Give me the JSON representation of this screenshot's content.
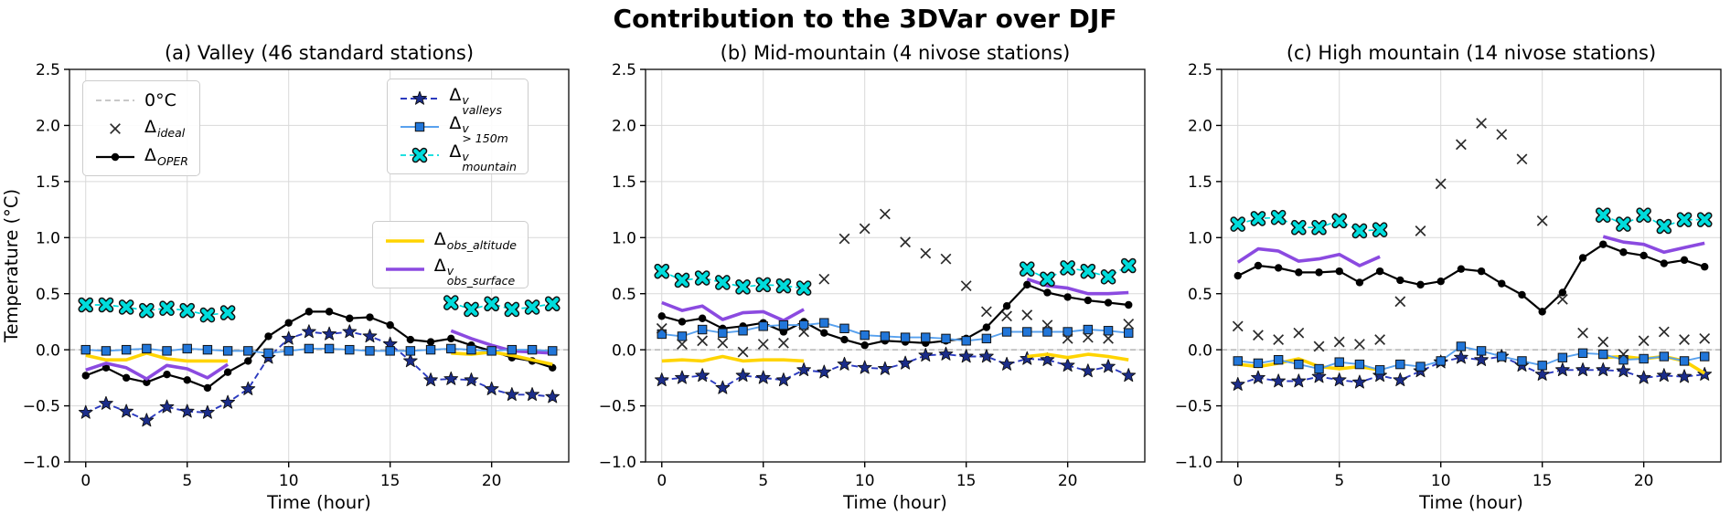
{
  "figure": {
    "title": "Contribution to the 3DVar over DJF",
    "x_axis_label": "Time (hour)",
    "y_axis_label": "Temperature (°C)",
    "x_ticks": [
      0,
      5,
      10,
      15,
      20
    ],
    "x_tick_labels": [
      "0",
      "5",
      "10",
      "15",
      "20"
    ],
    "y_ticks": [
      2.5,
      2.0,
      1.5,
      1.0,
      0.5,
      0.0,
      -0.5,
      -1.0
    ],
    "y_tick_labels": [
      "2.5",
      "2.0",
      "1.5",
      "1.0",
      "0.5",
      "0.0",
      "−0.5",
      "−1.0"
    ],
    "xlim": [
      -0.8,
      23.8
    ],
    "ylim": [
      -1.0,
      2.5
    ],
    "grid": true,
    "legend_position": "upper-left and upper-right of panel (a) only"
  },
  "colors": {
    "background": "#ffffff",
    "grid": "#d9d9d9",
    "spine": "#1a1a1a",
    "zero_line": "#a6a6a6",
    "ideal": "#2b2b2b",
    "oper": "#000000",
    "valleys_line": "#2b3abe",
    "valleys_marker": "#1b2d8a",
    "gt150_line": "#58a1ee",
    "gt150_marker": "#2176d9",
    "mountain": "#00dcdc",
    "obs_altitude": "#ffd400",
    "obs_surface": "#8b4ae0"
  },
  "series_styles": {
    "zero": {
      "color": "#a6a6a6",
      "width": 1.3,
      "dash": [
        6,
        4
      ],
      "marker": null
    },
    "ideal": {
      "color": "#2b2b2b",
      "width": 0,
      "dash": null,
      "marker": "x"
    },
    "oper": {
      "color": "#000000",
      "width": 2.2,
      "dash": null,
      "marker": "circle",
      "marker_color": "#000000"
    },
    "valleys": {
      "color": "#2b3abe",
      "width": 1.9,
      "dash": [
        7,
        4
      ],
      "marker": "star",
      "marker_color": "#1b2d8a"
    },
    "gt150": {
      "color": "#58a1ee",
      "width": 1.9,
      "dash": null,
      "marker": "square",
      "marker_color": "#2176d9"
    },
    "mountain": {
      "color": "#00dcdc",
      "width": 1.7,
      "dash": [
        6,
        4
      ],
      "marker": "thickx",
      "marker_color": "#00dcdc"
    },
    "obs_altitude": {
      "color": "#ffd400",
      "width": 3.6,
      "dash": null,
      "marker": null
    },
    "obs_surface": {
      "color": "#8b4ae0",
      "width": 3.6,
      "dash": null,
      "marker": null
    }
  },
  "legend": {
    "reference_box": [
      {
        "series": "zero",
        "base": "0°C"
      },
      {
        "series": "ideal",
        "base": "Δ",
        "sub": "ideal"
      },
      {
        "series": "oper",
        "base": "Δ",
        "sub": "OPER"
      }
    ],
    "increments_box": [
      {
        "series": "valleys",
        "base": "Δ",
        "sup": "v",
        "sub": "valleys"
      },
      {
        "series": "gt150",
        "base": "Δ",
        "sup": "v",
        "sub": "> 150m"
      },
      {
        "series": "mountain",
        "base": "Δ",
        "sup": "v",
        "sub": "mountain"
      }
    ],
    "obs_box": [
      {
        "series": "obs_altitude",
        "base": "Δ",
        "sub": "obs_altitude"
      },
      {
        "series": "obs_surface",
        "base": "Δ",
        "sup": "v",
        "sub": "obs_surface"
      }
    ]
  },
  "chart_data": [
    {
      "type": "line",
      "panel": "a",
      "title": "(a) Valley (46 standard stations)",
      "xlabel": "Time (hour)",
      "ylabel": "Temperature (°C)",
      "ylim": [
        -1.0,
        2.5
      ],
      "x": [
        0,
        1,
        2,
        3,
        4,
        5,
        6,
        7,
        8,
        9,
        10,
        11,
        12,
        13,
        14,
        15,
        16,
        17,
        18,
        19,
        20,
        21,
        22,
        23
      ],
      "series": [
        {
          "name": "oper",
          "values": [
            -0.23,
            -0.16,
            -0.25,
            -0.29,
            -0.22,
            -0.27,
            -0.34,
            -0.2,
            -0.1,
            0.12,
            0.24,
            0.34,
            0.34,
            0.28,
            0.29,
            0.22,
            0.09,
            0.07,
            0.1,
            0.04,
            -0.01,
            -0.07,
            -0.1,
            -0.16
          ]
        },
        {
          "name": "valleys",
          "values": [
            -0.56,
            -0.48,
            -0.55,
            -0.63,
            -0.51,
            -0.55,
            -0.56,
            -0.47,
            -0.35,
            -0.07,
            0.1,
            0.16,
            0.14,
            0.16,
            0.12,
            0.05,
            -0.1,
            -0.27,
            -0.26,
            -0.27,
            -0.35,
            -0.4,
            -0.4,
            -0.42
          ]
        },
        {
          "name": "obs_altitude",
          "values": [
            -0.05,
            -0.09,
            -0.09,
            -0.03,
            -0.08,
            -0.1,
            -0.1,
            -0.1,
            null,
            null,
            null,
            null,
            null,
            null,
            null,
            null,
            null,
            null,
            -0.03,
            -0.04,
            -0.02,
            -0.05,
            -0.09,
            -0.13
          ]
        },
        {
          "name": "obs_surface",
          "values": [
            -0.18,
            -0.12,
            -0.16,
            -0.26,
            -0.14,
            -0.17,
            -0.25,
            -0.13,
            null,
            null,
            null,
            null,
            null,
            null,
            null,
            null,
            null,
            null,
            0.17,
            0.1,
            0.04,
            -0.01,
            -0.02,
            -0.03
          ]
        },
        {
          "name": "gt150",
          "values": [
            0.0,
            -0.01,
            0.0,
            0.01,
            -0.01,
            0.01,
            0.0,
            -0.01,
            -0.01,
            -0.03,
            -0.01,
            0.01,
            0.01,
            0.0,
            -0.01,
            -0.01,
            -0.01,
            0.0,
            0.01,
            0.0,
            -0.01,
            0.0,
            0.0,
            -0.01
          ]
        },
        {
          "name": "mountain",
          "values": [
            0.4,
            0.4,
            0.38,
            0.35,
            0.37,
            0.35,
            0.31,
            0.33,
            null,
            null,
            null,
            null,
            null,
            null,
            null,
            null,
            null,
            null,
            0.42,
            0.36,
            0.41,
            0.36,
            0.38,
            0.41
          ]
        }
      ]
    },
    {
      "type": "line",
      "panel": "b",
      "title": "(b) Mid-mountain (4 nivose stations)",
      "xlabel": "Time (hour)",
      "ylabel": "Temperature (°C)",
      "ylim": [
        -1.0,
        2.5
      ],
      "x": [
        0,
        1,
        2,
        3,
        4,
        5,
        6,
        7,
        8,
        9,
        10,
        11,
        12,
        13,
        14,
        15,
        16,
        17,
        18,
        19,
        20,
        21,
        22,
        23
      ],
      "series": [
        {
          "name": "oper",
          "values": [
            0.3,
            0.25,
            0.28,
            0.19,
            0.21,
            0.24,
            0.16,
            0.25,
            0.15,
            0.09,
            0.04,
            0.08,
            0.07,
            0.06,
            0.08,
            0.1,
            0.2,
            0.39,
            0.58,
            0.51,
            0.47,
            0.44,
            0.42,
            0.4
          ]
        },
        {
          "name": "valleys",
          "values": [
            -0.27,
            -0.25,
            -0.23,
            -0.34,
            -0.23,
            -0.25,
            -0.27,
            -0.18,
            -0.2,
            -0.13,
            -0.16,
            -0.17,
            -0.12,
            -0.05,
            -0.04,
            -0.06,
            -0.06,
            -0.13,
            -0.08,
            -0.09,
            -0.14,
            -0.19,
            -0.15,
            -0.23
          ]
        },
        {
          "name": "obs_altitude",
          "values": [
            -0.1,
            -0.09,
            -0.1,
            -0.06,
            -0.1,
            -0.09,
            -0.09,
            -0.1,
            null,
            null,
            null,
            null,
            null,
            null,
            null,
            null,
            null,
            null,
            -0.06,
            -0.04,
            -0.07,
            -0.04,
            -0.06,
            -0.09
          ]
        },
        {
          "name": "obs_surface",
          "values": [
            0.42,
            0.35,
            0.39,
            0.27,
            0.33,
            0.34,
            0.26,
            0.36,
            null,
            null,
            null,
            null,
            null,
            null,
            null,
            null,
            null,
            null,
            0.63,
            0.57,
            0.55,
            0.5,
            0.5,
            0.51
          ]
        },
        {
          "name": "gt150",
          "values": [
            0.14,
            0.12,
            0.18,
            0.15,
            0.17,
            0.21,
            0.22,
            0.22,
            0.24,
            0.19,
            0.13,
            0.12,
            0.11,
            0.11,
            0.1,
            0.08,
            0.1,
            0.16,
            0.16,
            0.16,
            0.16,
            0.18,
            0.17,
            0.15
          ]
        },
        {
          "name": "mountain",
          "values": [
            0.7,
            0.62,
            0.64,
            0.6,
            0.56,
            0.58,
            0.57,
            0.55,
            null,
            null,
            null,
            null,
            null,
            null,
            null,
            null,
            null,
            null,
            0.72,
            0.63,
            0.73,
            0.7,
            0.65,
            0.75
          ]
        },
        {
          "name": "ideal",
          "values": [
            0.19,
            0.05,
            0.08,
            0.06,
            -0.02,
            0.05,
            0.06,
            0.16,
            0.63,
            0.99,
            1.08,
            1.21,
            0.96,
            0.86,
            0.81,
            0.57,
            0.34,
            0.3,
            0.31,
            0.22,
            0.1,
            0.11,
            0.1,
            0.23
          ]
        }
      ]
    },
    {
      "type": "line",
      "panel": "c",
      "title": "(c) High mountain (14 nivose stations)",
      "xlabel": "Time (hour)",
      "ylabel": "Temperature (°C)",
      "ylim": [
        -1.0,
        2.5
      ],
      "x": [
        0,
        1,
        2,
        3,
        4,
        5,
        6,
        7,
        8,
        9,
        10,
        11,
        12,
        13,
        14,
        15,
        16,
        17,
        18,
        19,
        20,
        21,
        22,
        23
      ],
      "series": [
        {
          "name": "oper",
          "values": [
            0.66,
            0.75,
            0.73,
            0.69,
            0.69,
            0.7,
            0.6,
            0.7,
            0.62,
            0.58,
            0.61,
            0.72,
            0.7,
            0.59,
            0.49,
            0.34,
            0.51,
            0.82,
            0.94,
            0.87,
            0.84,
            0.77,
            0.8,
            0.74
          ]
        },
        {
          "name": "valleys",
          "values": [
            -0.31,
            -0.25,
            -0.28,
            -0.28,
            -0.24,
            -0.27,
            -0.29,
            -0.23,
            -0.27,
            -0.19,
            -0.11,
            -0.07,
            -0.09,
            -0.06,
            -0.14,
            -0.22,
            -0.18,
            -0.18,
            -0.18,
            -0.19,
            -0.25,
            -0.23,
            -0.24,
            -0.22
          ]
        },
        {
          "name": "obs_altitude",
          "values": [
            -0.13,
            -0.15,
            -0.12,
            -0.08,
            -0.15,
            -0.17,
            -0.15,
            -0.18,
            null,
            null,
            null,
            null,
            null,
            null,
            null,
            null,
            null,
            null,
            -0.07,
            -0.06,
            -0.08,
            -0.06,
            -0.1,
            -0.21
          ]
        },
        {
          "name": "obs_surface",
          "values": [
            0.78,
            0.9,
            0.88,
            0.79,
            0.81,
            0.85,
            0.75,
            0.83,
            null,
            null,
            null,
            null,
            null,
            null,
            null,
            null,
            null,
            null,
            1.01,
            0.96,
            0.94,
            0.87,
            0.91,
            0.95
          ]
        },
        {
          "name": "gt150",
          "values": [
            -0.1,
            -0.12,
            -0.09,
            -0.13,
            -0.17,
            -0.11,
            -0.13,
            -0.18,
            -0.13,
            -0.15,
            -0.1,
            0.03,
            -0.01,
            -0.06,
            -0.1,
            -0.14,
            -0.07,
            -0.03,
            -0.04,
            -0.09,
            -0.08,
            -0.06,
            -0.1,
            -0.06
          ]
        },
        {
          "name": "mountain",
          "values": [
            1.12,
            1.17,
            1.18,
            1.09,
            1.09,
            1.15,
            1.06,
            1.07,
            null,
            null,
            null,
            null,
            null,
            null,
            null,
            null,
            null,
            null,
            1.2,
            1.12,
            1.2,
            1.1,
            1.16,
            1.16
          ]
        },
        {
          "name": "ideal",
          "values": [
            0.21,
            0.13,
            0.09,
            0.15,
            0.03,
            0.07,
            0.05,
            0.09,
            0.43,
            1.06,
            1.48,
            1.83,
            2.02,
            1.92,
            1.7,
            1.15,
            0.45,
            0.15,
            0.07,
            -0.04,
            0.08,
            0.16,
            0.09,
            0.1
          ]
        }
      ]
    }
  ]
}
